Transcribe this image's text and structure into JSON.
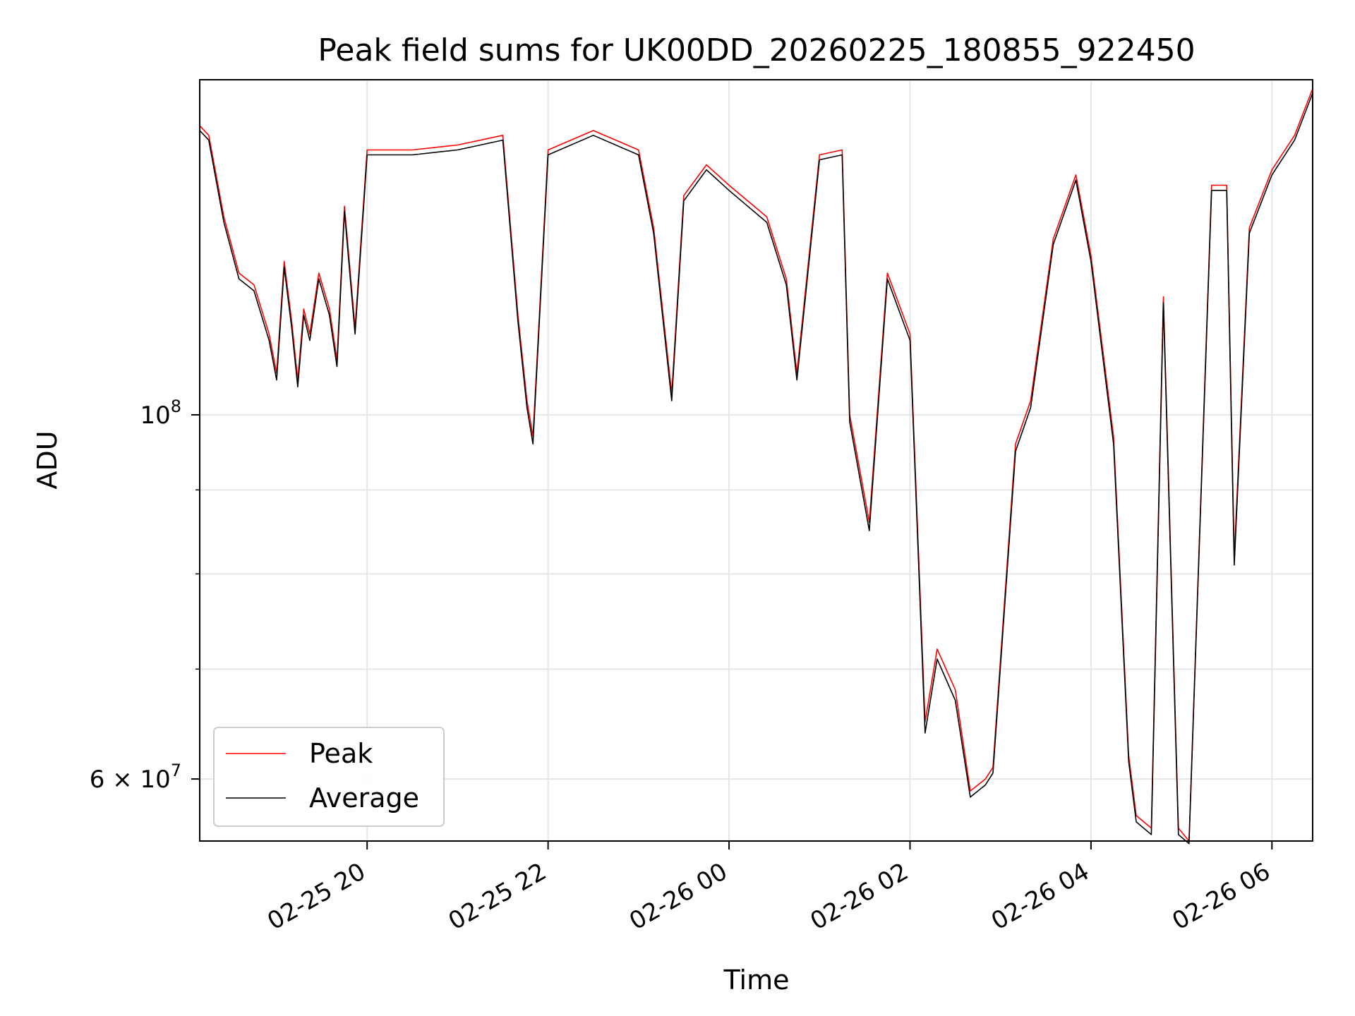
{
  "chart_data": {
    "type": "line",
    "title": "Peak field sums for UK00DD_20260225_180855_922450",
    "xlabel": "Time",
    "ylabel": "ADU",
    "y_scale": "log",
    "grid": true,
    "legend_position": "lower-left",
    "xlim": [
      "2026-02-25 18:09",
      "2026-02-26 06:27"
    ],
    "ylim": [
      55000000,
      160000000
    ],
    "x_ticks": [
      {
        "t": "2026-02-25 20:00",
        "label": "02-25 20"
      },
      {
        "t": "2026-02-25 22:00",
        "label": "02-25 22"
      },
      {
        "t": "2026-02-26 00:00",
        "label": "02-26 00"
      },
      {
        "t": "2026-02-26 02:00",
        "label": "02-26 02"
      },
      {
        "t": "2026-02-26 04:00",
        "label": "02-26 04"
      },
      {
        "t": "2026-02-26 06:00",
        "label": "02-26 06"
      }
    ],
    "y_ticks": [
      {
        "value": 100000000,
        "mantissa": "",
        "base": "10",
        "exp": "8"
      },
      {
        "value": 60000000,
        "mantissa": "6 × ",
        "base": "10",
        "exp": "7"
      }
    ],
    "y_minor_grid": [
      70000000,
      80000000,
      90000000
    ],
    "series": [
      {
        "name": "Peak",
        "color": "#ff0000",
        "x": [
          "2026-02-25 18:09",
          "2026-02-25 18:15",
          "2026-02-25 18:25",
          "2026-02-25 18:35",
          "2026-02-25 18:45",
          "2026-02-25 18:55",
          "2026-02-25 19:00",
          "2026-02-25 19:05",
          "2026-02-25 19:10",
          "2026-02-25 19:14",
          "2026-02-25 19:18",
          "2026-02-25 19:22",
          "2026-02-25 19:28",
          "2026-02-25 19:35",
          "2026-02-25 19:40",
          "2026-02-25 19:45",
          "2026-02-25 19:52",
          "2026-02-25 20:00",
          "2026-02-25 20:30",
          "2026-02-25 21:00",
          "2026-02-25 21:30",
          "2026-02-25 21:40",
          "2026-02-25 21:46",
          "2026-02-25 21:50",
          "2026-02-25 22:00",
          "2026-02-25 22:30",
          "2026-02-25 23:00",
          "2026-02-25 23:10",
          "2026-02-25 23:22",
          "2026-02-25 23:30",
          "2026-02-25 23:45",
          "2026-02-26 00:00",
          "2026-02-26 00:25",
          "2026-02-26 00:38",
          "2026-02-26 00:45",
          "2026-02-26 01:00",
          "2026-02-26 01:15",
          "2026-02-26 01:20",
          "2026-02-26 01:33",
          "2026-02-26 01:45",
          "2026-02-26 02:00",
          "2026-02-26 02:10",
          "2026-02-26 02:18",
          "2026-02-26 02:30",
          "2026-02-26 02:40",
          "2026-02-26 02:50",
          "2026-02-26 02:55",
          "2026-02-26 03:10",
          "2026-02-26 03:20",
          "2026-02-26 03:35",
          "2026-02-26 03:50",
          "2026-02-26 04:00",
          "2026-02-26 04:15",
          "2026-02-26 04:25",
          "2026-02-26 04:30",
          "2026-02-26 04:40",
          "2026-02-26 04:48",
          "2026-02-26 04:58",
          "2026-02-26 05:05",
          "2026-02-26 05:20",
          "2026-02-26 05:30",
          "2026-02-26 05:35",
          "2026-02-26 05:45",
          "2026-02-26 06:00",
          "2026-02-26 06:15",
          "2026-02-26 06:27"
        ],
        "values": [
          150000000,
          148000000,
          132000000,
          122000000,
          120000000,
          112000000,
          106000000,
          124000000,
          114000000,
          105000000,
          116000000,
          112000000,
          122000000,
          116000000,
          108000000,
          134000000,
          113000000,
          145000000,
          145000000,
          146000000,
          148000000,
          115000000,
          102000000,
          97000000,
          145000000,
          149000000,
          145000000,
          130000000,
          103000000,
          136000000,
          142000000,
          138000000,
          132000000,
          121000000,
          106000000,
          144000000,
          145000000,
          100000000,
          86000000,
          122000000,
          112000000,
          65000000,
          72000000,
          68000000,
          59000000,
          60000000,
          61000000,
          96000000,
          102000000,
          128000000,
          140000000,
          125000000,
          97000000,
          62000000,
          57000000,
          56000000,
          118000000,
          56000000,
          55000000,
          138000000,
          138000000,
          82000000,
          130000000,
          141000000,
          148000000,
          158000000
        ]
      },
      {
        "name": "Average",
        "color": "#000000",
        "x": [
          "2026-02-25 18:09",
          "2026-02-25 18:15",
          "2026-02-25 18:25",
          "2026-02-25 18:35",
          "2026-02-25 18:45",
          "2026-02-25 18:55",
          "2026-02-25 19:00",
          "2026-02-25 19:05",
          "2026-02-25 19:10",
          "2026-02-25 19:14",
          "2026-02-25 19:18",
          "2026-02-25 19:22",
          "2026-02-25 19:28",
          "2026-02-25 19:35",
          "2026-02-25 19:40",
          "2026-02-25 19:45",
          "2026-02-25 19:52",
          "2026-02-25 20:00",
          "2026-02-25 20:30",
          "2026-02-25 21:00",
          "2026-02-25 21:30",
          "2026-02-25 21:40",
          "2026-02-25 21:46",
          "2026-02-25 21:50",
          "2026-02-25 22:00",
          "2026-02-25 22:30",
          "2026-02-25 23:00",
          "2026-02-25 23:10",
          "2026-02-25 23:22",
          "2026-02-25 23:30",
          "2026-02-25 23:45",
          "2026-02-26 00:00",
          "2026-02-26 00:25",
          "2026-02-26 00:38",
          "2026-02-26 00:45",
          "2026-02-26 01:00",
          "2026-02-26 01:15",
          "2026-02-26 01:20",
          "2026-02-26 01:33",
          "2026-02-26 01:45",
          "2026-02-26 02:00",
          "2026-02-26 02:10",
          "2026-02-26 02:18",
          "2026-02-26 02:30",
          "2026-02-26 02:40",
          "2026-02-26 02:50",
          "2026-02-26 02:55",
          "2026-02-26 03:10",
          "2026-02-26 03:20",
          "2026-02-26 03:35",
          "2026-02-26 03:50",
          "2026-02-26 04:00",
          "2026-02-26 04:15",
          "2026-02-26 04:25",
          "2026-02-26 04:30",
          "2026-02-26 04:40",
          "2026-02-26 04:48",
          "2026-02-26 04:58",
          "2026-02-26 05:05",
          "2026-02-26 05:20",
          "2026-02-26 05:30",
          "2026-02-26 05:35",
          "2026-02-26 05:45",
          "2026-02-26 06:00",
          "2026-02-26 06:15",
          "2026-02-26 06:27"
        ],
        "values": [
          149000000,
          147000000,
          131000000,
          121000000,
          119000000,
          111000000,
          105000000,
          123000000,
          113000000,
          104000000,
          115000000,
          111000000,
          121000000,
          115000000,
          107000000,
          133000000,
          112000000,
          144000000,
          144000000,
          145000000,
          147000000,
          114000000,
          101000000,
          96000000,
          144000000,
          148000000,
          144000000,
          129000000,
          102000000,
          135000000,
          141000000,
          137000000,
          131000000,
          120000000,
          105000000,
          143000000,
          144000000,
          99000000,
          85000000,
          121000000,
          111000000,
          64000000,
          71000000,
          67000000,
          58500000,
          59500000,
          60500000,
          95000000,
          101000000,
          127000000,
          139000000,
          124000000,
          96000000,
          61500000,
          56500000,
          55500000,
          117000000,
          55500000,
          54800000,
          137000000,
          137000000,
          81000000,
          129000000,
          140000000,
          147000000,
          157000000
        ]
      }
    ]
  }
}
